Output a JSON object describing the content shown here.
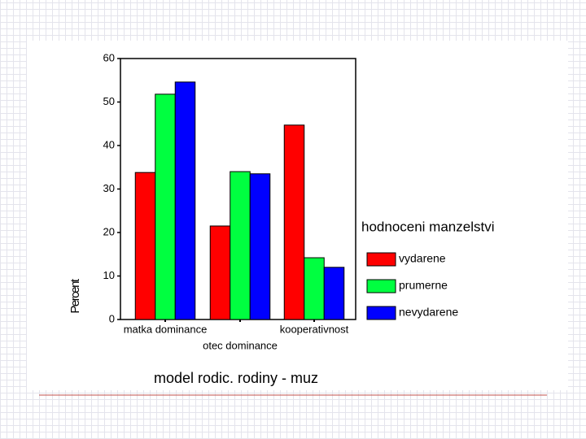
{
  "chart_data": {
    "type": "bar",
    "title": "model rodic. rodiny - muz",
    "y_label": "Percent",
    "legend_title": "hodnoceni manzelstvi",
    "legend": "right",
    "categories": [
      "matka dominance",
      "otec dominance",
      "kooperativnost"
    ],
    "series": [
      {
        "name": "vydarene",
        "color": "#ff0000",
        "values": [
          33.8,
          21.5,
          44.7
        ]
      },
      {
        "name": "prumerne",
        "color": "#00ff40",
        "values": [
          51.8,
          34.0,
          14.2
        ]
      },
      {
        "name": "nevydarene",
        "color": "#0000ff",
        "values": [
          54.6,
          33.5,
          12.0
        ]
      }
    ],
    "ylim": [
      0,
      60
    ],
    "yticks": [
      0,
      10,
      20,
      30,
      40,
      50,
      60
    ],
    "grid": false
  }
}
